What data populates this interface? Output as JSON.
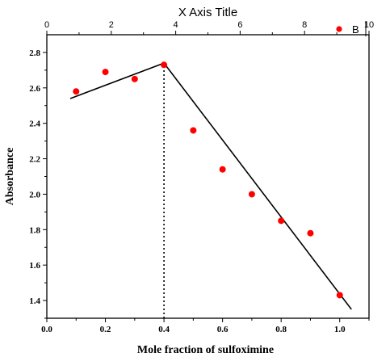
{
  "chart_data": {
    "type": "scatter",
    "title": "",
    "xlabel": "Mole fraction of sulfoximine",
    "ylabel": "Absorbance",
    "top_axis_title": "X Axis Title",
    "xlim": [
      0.0,
      1.1
    ],
    "ylim": [
      1.3,
      2.9
    ],
    "top_xlim": [
      0,
      10
    ],
    "x_ticks": [
      0.0,
      0.2,
      0.4,
      0.6,
      0.8,
      1.0
    ],
    "x_tick_labels": [
      "0.0",
      "0.2",
      "0.4",
      "0.6",
      "0.8",
      "1.0"
    ],
    "y_ticks": [
      1.4,
      1.6,
      1.8,
      2.0,
      2.2,
      2.4,
      2.6,
      2.8
    ],
    "y_tick_labels": [
      "1.4",
      "1.6",
      "1.8",
      "2.0",
      "2.2",
      "2.4",
      "2.6",
      "2.8"
    ],
    "top_ticks": [
      0,
      2,
      4,
      6,
      8,
      10
    ],
    "top_tick_labels": [
      "0",
      "2",
      "4",
      "6",
      "8",
      "10"
    ],
    "series": [
      {
        "name": "B",
        "color": "#ff0000",
        "marker": "circle",
        "x": [
          0.1,
          0.2,
          0.3,
          0.4,
          0.5,
          0.6,
          0.7,
          0.8,
          0.9,
          1.0
        ],
        "y": [
          2.58,
          2.69,
          2.65,
          2.73,
          2.36,
          2.14,
          2.0,
          1.85,
          1.78,
          1.43
        ]
      }
    ],
    "fit_lines": [
      {
        "x": [
          0.08,
          0.4
        ],
        "y": [
          2.54,
          2.74
        ],
        "color": "#000000"
      },
      {
        "x": [
          0.4,
          1.04
        ],
        "y": [
          2.74,
          1.35
        ],
        "color": "#000000"
      }
    ],
    "reference_line": {
      "x": 0.4,
      "y_from": 1.3,
      "y_to": 2.74,
      "style": "dotted"
    },
    "legend": {
      "placement": "top-right",
      "entries": [
        "B"
      ]
    },
    "grid": false
  }
}
